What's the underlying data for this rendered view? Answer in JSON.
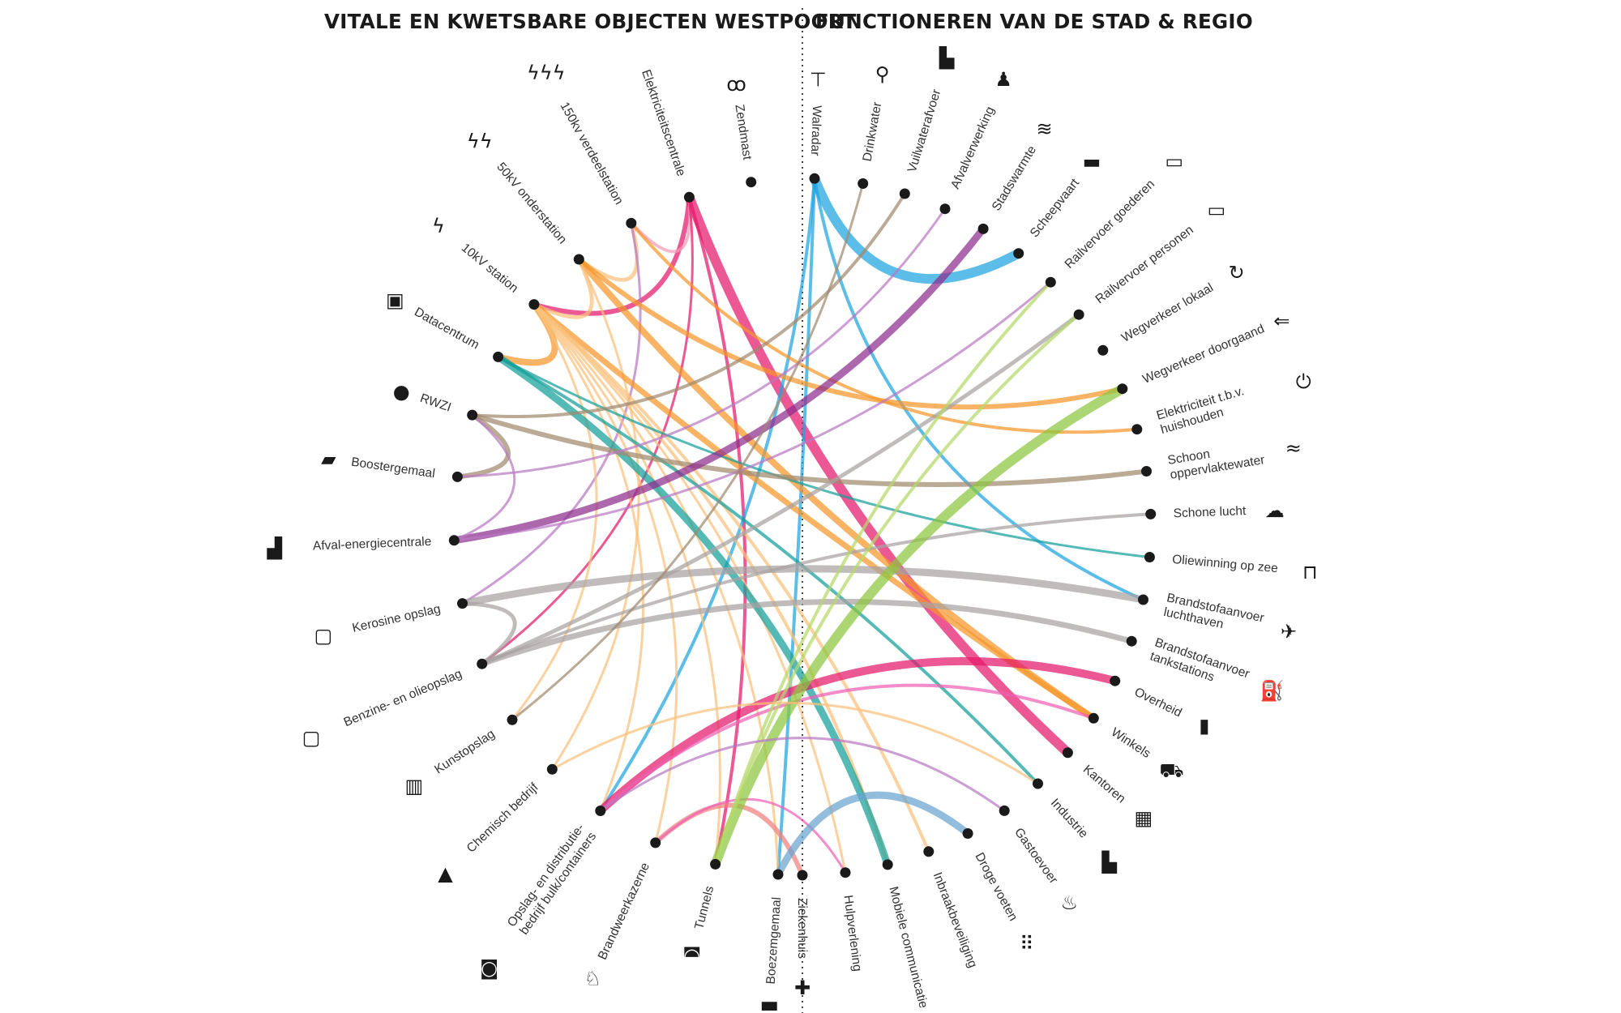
{
  "titles": {
    "left": "VITALE EN KWETSBARE OBJECTEN WESTPOORT",
    "right": "FUNCTIONEREN VAN  DE STAD & REGIO"
  },
  "colors": {
    "magenta": "#e5186b",
    "cyan": "#1ea3e0",
    "orange": "#f5962a",
    "teal": "#14a09a",
    "purple": "#8e2d8e",
    "taupe": "#a0896e",
    "grey": "#a7a2a2",
    "green": "#8cc63f",
    "pink": "#ef60b3",
    "salmon": "#f08080",
    "steel": "#6aa4cf",
    "lightorange": "#f9c07a",
    "lightpink": "#f29bb7",
    "lightgreen": "#b5d86a",
    "lightpurple": "#b878c4"
  },
  "left_nodes": [
    {
      "id": "walradar",
      "label": "Walradar",
      "icon": "radar-icon"
    },
    {
      "id": "zendmast",
      "label": "Zendmast",
      "icon": "antenna-icon"
    },
    {
      "id": "elektriciteitscentrale",
      "label": "Elektriciteitscentrale",
      "icon": "power-plant-icon"
    },
    {
      "id": "150kv",
      "label": "150kv verdeelstation",
      "icon": "triple-bolt-icon"
    },
    {
      "id": "50kv",
      "label": "50kV onderstation",
      "icon": "double-bolt-icon"
    },
    {
      "id": "10kv",
      "label": "10kV station",
      "icon": "bolt-icon"
    },
    {
      "id": "datacentrum",
      "label": "Datacentrum",
      "icon": "binary-icon"
    },
    {
      "id": "rwzi",
      "label": "RWZI",
      "icon": "drop-icon"
    },
    {
      "id": "boostergemaal",
      "label": "Boostergemaal",
      "icon": "pump-icon"
    },
    {
      "id": "afval",
      "label": "Afval-energiecentrale",
      "icon": "incinerator-icon"
    },
    {
      "id": "kerosine",
      "label": "Kerosine opslag",
      "icon": "kerosine-icon"
    },
    {
      "id": "benzine",
      "label": "Benzine- en olieopslag",
      "icon": "oil-storage-icon"
    },
    {
      "id": "kunstopslag",
      "label": "Kunstopslag",
      "icon": "museum-icon"
    },
    {
      "id": "chemisch",
      "label": "Chemisch bedrijf",
      "icon": "flask-icon"
    },
    {
      "id": "opslag",
      "label": "Opslag- en distributie-\nbedrijf bulk/containers",
      "icon": "container-icon"
    },
    {
      "id": "brandweer",
      "label": "Brandweerkazerne",
      "icon": "fire-brigade-icon"
    },
    {
      "id": "tunnels",
      "label": "Tunnels",
      "icon": "tunnel-icon"
    },
    {
      "id": "boezemgemaal",
      "label": "Boezemgemaal",
      "icon": "pumping-station-icon"
    }
  ],
  "right_nodes": [
    {
      "id": "drinkwater",
      "label": "Drinkwater",
      "icon": "tap-icon"
    },
    {
      "id": "vuilwater",
      "label": "Vuilwaterafvoer",
      "icon": "toilet-icon"
    },
    {
      "id": "afvalverwerking",
      "label": "Afvalverwerking",
      "icon": "garbage-bag-icon"
    },
    {
      "id": "stadswarmte",
      "label": "Stadswarmte",
      "icon": "heat-icon"
    },
    {
      "id": "scheepvaart",
      "label": "Scheepvaart",
      "icon": "ship-icon"
    },
    {
      "id": "railgoederen",
      "label": "Railvervoer goederen",
      "icon": "freight-train-icon"
    },
    {
      "id": "railpersonen",
      "label": "Railvervoer personen",
      "icon": "passenger-train-icon"
    },
    {
      "id": "wegverkeerlokaal",
      "label": "Wegverkeer lokaal",
      "icon": "local-traffic-icon"
    },
    {
      "id": "wegverkeerdoorgaand",
      "label": "Wegverkeer doorgaand",
      "icon": "car-icon"
    },
    {
      "id": "elektriciteit",
      "label": "Elektriciteit t.b.v.\nhuishouden",
      "icon": "plug-icon"
    },
    {
      "id": "oppervlaktewater",
      "label": "Schoon\noppervlaktewater",
      "icon": "waves-icon"
    },
    {
      "id": "schonelucht",
      "label": "Schone lucht",
      "icon": "cloud-icon"
    },
    {
      "id": "oliewinning",
      "label": "Oliewinning op zee",
      "icon": "oil-rig-icon"
    },
    {
      "id": "brandstofluchthaven",
      "label": "Brandstofaanvoer\nluchthaven",
      "icon": "airplane-icon"
    },
    {
      "id": "brandstoftank",
      "label": "Brandstofaanvoer\ntankstations",
      "icon": "fuel-pump-icon"
    },
    {
      "id": "overheid",
      "label": "Overheid",
      "icon": "government-icon"
    },
    {
      "id": "winkels",
      "label": "Winkels",
      "icon": "cart-icon"
    },
    {
      "id": "kantoren",
      "label": "Kantoren",
      "icon": "office-icon"
    },
    {
      "id": "industrie",
      "label": "Industrie",
      "icon": "factory-icon"
    },
    {
      "id": "gastoevoer",
      "label": "Gastoevoer",
      "icon": "flame-icon"
    },
    {
      "id": "drogevoeten",
      "label": "Droge voeten",
      "icon": "footprints-icon"
    },
    {
      "id": "inbraak",
      "label": "Inbraakbeveiliging",
      "icon": "check-icon"
    },
    {
      "id": "mobiel",
      "label": "Mobiele communicatie",
      "icon": "wifi-icon"
    },
    {
      "id": "hulpverlening",
      "label": "Hulpverlening",
      "icon": "first-aid-icon"
    },
    {
      "id": "ziekenhuis",
      "label": "Ziekenhuis",
      "icon": "hospital-cross-icon"
    }
  ],
  "links": [
    {
      "from": "elektriciteitscentrale",
      "to": "kantoren",
      "color": "magenta",
      "weight": 12
    },
    {
      "from": "elektriciteitscentrale",
      "to": "10kv",
      "color": "magenta",
      "weight": 6
    },
    {
      "from": "elektriciteitscentrale",
      "to": "150kv",
      "color": "lightpink",
      "weight": 4
    },
    {
      "from": "elektriciteitscentrale",
      "to": "tunnels",
      "color": "magenta",
      "weight": 4
    },
    {
      "from": "elektriciteitscentrale",
      "to": "benzine",
      "color": "magenta",
      "weight": 3
    },
    {
      "from": "walradar",
      "to": "scheepvaart",
      "color": "cyan",
      "weight": 12
    },
    {
      "from": "walradar",
      "to": "brandstofluchthaven",
      "color": "cyan",
      "weight": 4
    },
    {
      "from": "walradar",
      "to": "opslag",
      "color": "cyan",
      "weight": 4
    },
    {
      "from": "walradar",
      "to": "boezemgemaal",
      "color": "cyan",
      "weight": 4
    },
    {
      "from": "150kv",
      "to": "50kv",
      "color": "lightorange",
      "weight": 5
    },
    {
      "from": "150kv",
      "to": "elektriciteit",
      "color": "orange",
      "weight": 4
    },
    {
      "from": "150kv",
      "to": "kerosine",
      "color": "lightpurple",
      "weight": 3
    },
    {
      "from": "50kv",
      "to": "10kv",
      "color": "lightorange",
      "weight": 5
    },
    {
      "from": "50kv",
      "to": "wegverkeerdoorgaand",
      "color": "orange",
      "weight": 6
    },
    {
      "from": "50kv",
      "to": "winkels",
      "color": "orange",
      "weight": 8
    },
    {
      "from": "50kv",
      "to": "chemisch",
      "color": "lightorange",
      "weight": 3
    },
    {
      "from": "10kv",
      "to": "datacentrum",
      "color": "orange",
      "weight": 8
    },
    {
      "from": "10kv",
      "to": "winkels",
      "color": "orange",
      "weight": 7
    },
    {
      "from": "10kv",
      "to": "inbraak",
      "color": "lightorange",
      "weight": 4
    },
    {
      "from": "10kv",
      "to": "mobiel",
      "color": "lightorange",
      "weight": 4
    },
    {
      "from": "10kv",
      "to": "opslag",
      "color": "lightorange",
      "weight": 3
    },
    {
      "from": "10kv",
      "to": "brandweer",
      "color": "lightorange",
      "weight": 3
    },
    {
      "from": "10kv",
      "to": "kunstopslag",
      "color": "lightorange",
      "weight": 3
    },
    {
      "from": "10kv",
      "to": "tunnels",
      "color": "lightorange",
      "weight": 3
    },
    {
      "from": "10kv",
      "to": "boezemgemaal",
      "color": "lightorange",
      "weight": 3
    },
    {
      "from": "10kv",
      "to": "hulpverlening",
      "color": "lightorange",
      "weight": 3
    },
    {
      "from": "datacentrum",
      "to": "mobiel",
      "color": "teal",
      "weight": 9
    },
    {
      "from": "datacentrum",
      "to": "industrie",
      "color": "teal",
      "weight": 4
    },
    {
      "from": "datacentrum",
      "to": "oliewinning",
      "color": "teal",
      "weight": 3
    },
    {
      "from": "rwzi",
      "to": "boostergemaal",
      "color": "taupe",
      "weight": 6
    },
    {
      "from": "rwzi",
      "to": "oppervlaktewater",
      "color": "taupe",
      "weight": 6
    },
    {
      "from": "rwzi",
      "to": "vuilwater",
      "color": "taupe",
      "weight": 4
    },
    {
      "from": "boostergemaal",
      "to": "afvalverwerking",
      "color": "lightpurple",
      "weight": 3
    },
    {
      "from": "afval",
      "to": "stadswarmte",
      "color": "purple",
      "weight": 9
    },
    {
      "from": "afval",
      "to": "rwzi",
      "color": "lightpurple",
      "weight": 3
    },
    {
      "from": "afval",
      "to": "railgoederen",
      "color": "lightpurple",
      "weight": 3
    },
    {
      "from": "kerosine",
      "to": "brandstofluchthaven",
      "color": "grey",
      "weight": 9
    },
    {
      "from": "kerosine",
      "to": "benzine",
      "color": "grey",
      "weight": 5
    },
    {
      "from": "benzine",
      "to": "brandstoftank",
      "color": "grey",
      "weight": 7
    },
    {
      "from": "benzine",
      "to": "railpersonen",
      "color": "grey",
      "weight": 5
    },
    {
      "from": "benzine",
      "to": "schonelucht",
      "color": "grey",
      "weight": 4
    },
    {
      "from": "kunstopslag",
      "to": "drinkwater",
      "color": "taupe",
      "weight": 3
    },
    {
      "from": "opslag",
      "to": "overheid",
      "color": "magenta",
      "weight": 10
    },
    {
      "from": "opslag",
      "to": "winkels",
      "color": "pink",
      "weight": 4
    },
    {
      "from": "brandweer",
      "to": "ziekenhuis",
      "color": "salmon",
      "weight": 6
    },
    {
      "from": "brandweer",
      "to": "hulpverlening",
      "color": "pink",
      "weight": 3
    },
    {
      "from": "tunnels",
      "to": "wegverkeerdoorgaand",
      "color": "green",
      "weight": 12
    },
    {
      "from": "tunnels",
      "to": "railgoederen",
      "color": "lightgreen",
      "weight": 4
    },
    {
      "from": "tunnels",
      "to": "railpersonen",
      "color": "lightgreen",
      "weight": 4
    },
    {
      "from": "boezemgemaal",
      "to": "drogevoeten",
      "color": "steel",
      "weight": 9
    },
    {
      "from": "chemisch",
      "to": "industrie",
      "color": "lightorange",
      "weight": 3
    },
    {
      "from": "opslag",
      "to": "gastoevoer",
      "color": "lightpurple",
      "weight": 3
    }
  ]
}
